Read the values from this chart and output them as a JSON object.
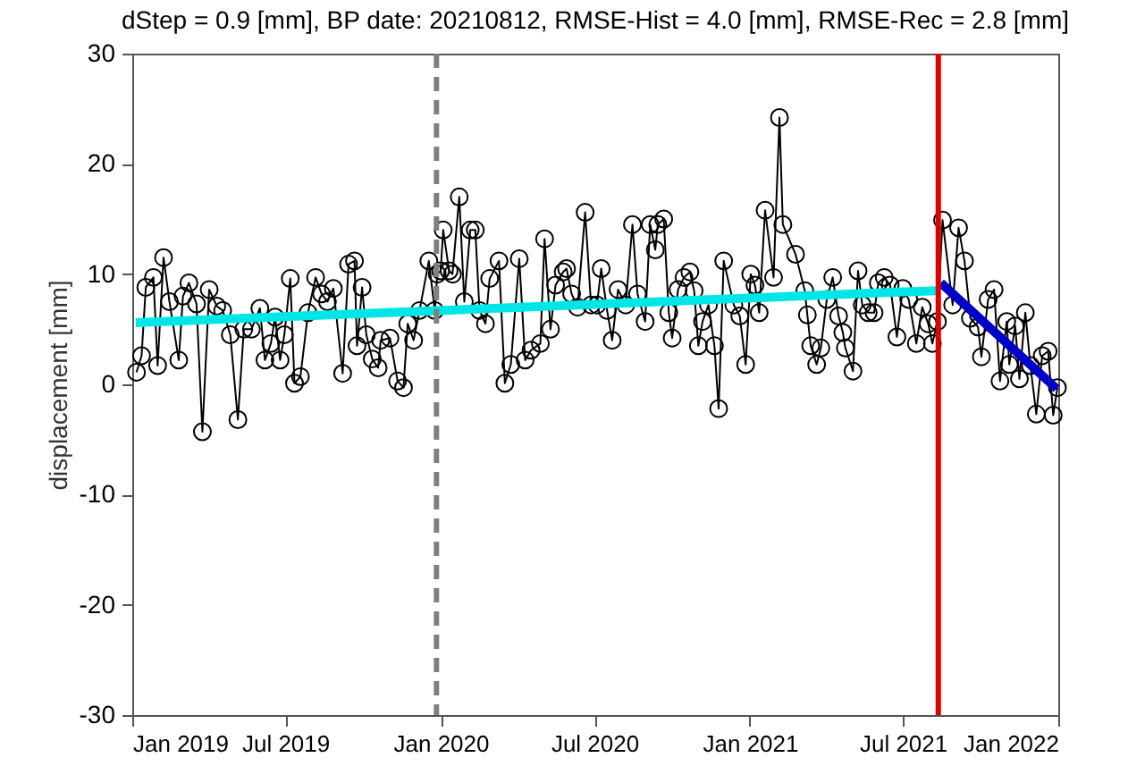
{
  "chart_data": {
    "type": "line",
    "title": "dStep = 0.9 [mm], BP date: 20210812, RMSE-Hist = 4.0 [mm], RMSE-Rec = 2.8 [mm]",
    "ylabel": "displacement [mm]",
    "xlim": [
      "2019-01-01",
      "2022-01-01"
    ],
    "xticks": [
      {
        "value": "2019-01-01",
        "label": "Jan 2019"
      },
      {
        "value": "2019-07-01",
        "label": "Jul 2019"
      },
      {
        "value": "2020-01-01",
        "label": "Jan 2020"
      },
      {
        "value": "2020-07-01",
        "label": "Jul 2020"
      },
      {
        "value": "2021-01-01",
        "label": "Jan 2021"
      },
      {
        "value": "2021-07-01",
        "label": "Jul 2021"
      },
      {
        "value": "2022-01-01",
        "label": "Jan 2022"
      }
    ],
    "ylim": [
      -30,
      30
    ],
    "yticks": [
      -30,
      -20,
      -10,
      0,
      10,
      20,
      30
    ],
    "grid": false,
    "series": [
      {
        "color": "#000000",
        "marker": "circle",
        "x": [
          "2019-01-06",
          "2019-01-12",
          "2019-01-17",
          "2019-01-26",
          "2019-01-31",
          "2019-02-07",
          "2019-02-14",
          "2019-02-25",
          "2019-03-02",
          "2019-03-09",
          "2019-03-18",
          "2019-03-25",
          "2019-04-02",
          "2019-04-11",
          "2019-04-18",
          "2019-04-27",
          "2019-05-06",
          "2019-05-13",
          "2019-05-22",
          "2019-06-01",
          "2019-06-07",
          "2019-06-14",
          "2019-06-19",
          "2019-06-25",
          "2019-06-30",
          "2019-07-07",
          "2019-07-12",
          "2019-07-19",
          "2019-07-28",
          "2019-08-06",
          "2019-08-13",
          "2019-08-20",
          "2019-08-27",
          "2019-09-07",
          "2019-09-14",
          "2019-09-21",
          "2019-09-24",
          "2019-09-30",
          "2019-10-05",
          "2019-10-12",
          "2019-10-19",
          "2019-10-22",
          "2019-11-02",
          "2019-11-11",
          "2019-11-18",
          "2019-11-23",
          "2019-11-30",
          "2019-12-07",
          "2019-12-18",
          "2019-12-25",
          "2019-12-28",
          "2020-01-01",
          "2020-01-04",
          "2020-01-11",
          "2020-01-15",
          "2020-01-23",
          "2020-01-29",
          "2020-02-05",
          "2020-02-11",
          "2020-02-16",
          "2020-02-23",
          "2020-02-28",
          "2020-03-10",
          "2020-03-17",
          "2020-03-24",
          "2020-04-03",
          "2020-04-10",
          "2020-04-17",
          "2020-04-28",
          "2020-05-03",
          "2020-05-10",
          "2020-05-16",
          "2020-05-25",
          "2020-05-29",
          "2020-06-04",
          "2020-06-11",
          "2020-06-20",
          "2020-06-27",
          "2020-07-04",
          "2020-07-09",
          "2020-07-16",
          "2020-07-22",
          "2020-07-29",
          "2020-08-07",
          "2020-08-15",
          "2020-08-21",
          "2020-08-30",
          "2020-09-05",
          "2020-09-11",
          "2020-09-14",
          "2020-09-21",
          "2020-09-27",
          "2020-10-01",
          "2020-10-08",
          "2020-10-15",
          "2020-10-22",
          "2020-10-27",
          "2020-11-01",
          "2020-11-06",
          "2020-11-13",
          "2020-11-20",
          "2020-11-25",
          "2020-12-01",
          "2020-12-13",
          "2020-12-20",
          "2020-12-27",
          "2021-01-02",
          "2021-01-07",
          "2021-01-12",
          "2021-01-19",
          "2021-01-29",
          "2021-02-05",
          "2021-02-09",
          "2021-02-24",
          "2021-03-07",
          "2021-03-10",
          "2021-03-14",
          "2021-03-21",
          "2021-03-26",
          "2021-04-02",
          "2021-04-09",
          "2021-04-16",
          "2021-04-21",
          "2021-04-24",
          "2021-05-03",
          "2021-05-09",
          "2021-05-14",
          "2021-05-21",
          "2021-05-28",
          "2021-06-02",
          "2021-06-09",
          "2021-06-16",
          "2021-06-24",
          "2021-07-01",
          "2021-07-08",
          "2021-07-17",
          "2021-07-24",
          "2021-07-31",
          "2021-08-05",
          "2021-08-11",
          "2021-08-17",
          "2021-08-29",
          "2021-09-05",
          "2021-09-12",
          "2021-09-19",
          "2021-09-28",
          "2021-10-02",
          "2021-10-10",
          "2021-10-17",
          "2021-10-24",
          "2021-11-01",
          "2021-11-04",
          "2021-11-11",
          "2021-11-16",
          "2021-11-23",
          "2021-11-29",
          "2021-12-06",
          "2021-12-13",
          "2021-12-20",
          "2021-12-26",
          "2021-12-31"
        ],
        "values": [
          1.1,
          2.6,
          8.8,
          9.7,
          1.7,
          11.5,
          7.5,
          2.2,
          8.0,
          9.2,
          7.3,
          -4.3,
          8.6,
          7.1,
          6.7,
          4.5,
          -3.2,
          5.0,
          5.0,
          6.9,
          2.2,
          3.7,
          6.1,
          2.2,
          4.5,
          9.6,
          0.1,
          0.7,
          6.5,
          9.7,
          8.2,
          7.5,
          8.7,
          1.0,
          10.9,
          11.2,
          3.5,
          8.8,
          4.5,
          2.3,
          1.5,
          4.0,
          4.2,
          0.3,
          -0.3,
          5.5,
          4.0,
          6.7,
          11.2,
          6.7,
          10.0,
          10.3,
          14.0,
          10.3,
          10.0,
          17.0,
          7.5,
          14.0,
          14.0,
          6.7,
          5.5,
          9.6,
          11.2,
          0.1,
          1.8,
          11.4,
          2.2,
          3.1,
          3.7,
          13.2,
          5.0,
          9.0,
          10.2,
          10.5,
          8.2,
          7.0,
          15.6,
          7.2,
          7.2,
          10.5,
          6.7,
          4.0,
          8.6,
          7.2,
          14.5,
          8.2,
          5.7,
          14.5,
          12.2,
          14.5,
          15.0,
          6.5,
          4.2,
          8.6,
          9.7,
          10.2,
          8.5,
          3.5,
          5.7,
          7.2,
          3.5,
          -2.2,
          11.2,
          7.2,
          6.2,
          1.8,
          10.0,
          9.0,
          6.5,
          15.8,
          9.7,
          24.2,
          14.5,
          11.8,
          8.5,
          6.3,
          3.5,
          1.8,
          3.3,
          7.7,
          9.7,
          6.2,
          4.7,
          3.3,
          1.2,
          10.3,
          7.2,
          6.5,
          6.5,
          9.2,
          9.7,
          9.0,
          4.3,
          8.7,
          7.7,
          3.7,
          7.0,
          5.5,
          3.7,
          5.7,
          14.9,
          7.2,
          14.2,
          11.2,
          6.0,
          5.2,
          2.5,
          7.7,
          8.6,
          0.3,
          5.7,
          1.8,
          5.3,
          0.5,
          6.5,
          1.7,
          -2.7,
          2.6,
          3.0,
          -2.8,
          -0.3
        ]
      },
      {
        "color": "#00e5e5",
        "x": [
          "2019-01-05",
          "2021-08-10"
        ],
        "values": [
          5.6,
          8.5
        ]
      },
      {
        "color": "#0000c8",
        "x": [
          "2021-08-15",
          "2021-12-30"
        ],
        "values": [
          9.2,
          -0.4
        ]
      }
    ],
    "ref_lines": [
      {
        "axis": "x",
        "value": "2019-12-27",
        "color": "#808080",
        "line_style": "dashed"
      },
      {
        "axis": "x",
        "value": "2021-08-12",
        "color": "#e00000",
        "line_style": "solid"
      }
    ]
  }
}
